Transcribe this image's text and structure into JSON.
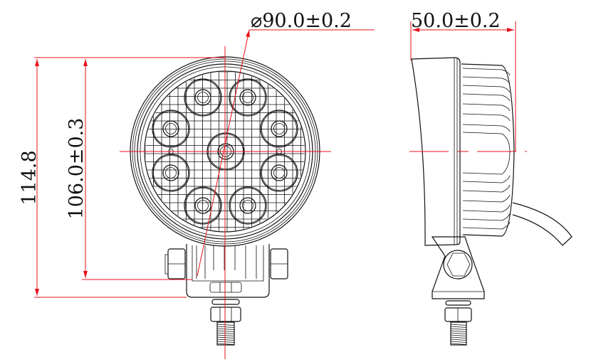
{
  "drawing": {
    "colors": {
      "outline": "#111111",
      "dimension": "#e8101a"
    },
    "front_view": {
      "diameter_label": "⌀90.0±0.2",
      "overall_height_label": "114.8",
      "housing_height_label": "106.0±0.3",
      "led_count": 9
    },
    "side_view": {
      "depth_label": "50.0±0.2"
    }
  }
}
